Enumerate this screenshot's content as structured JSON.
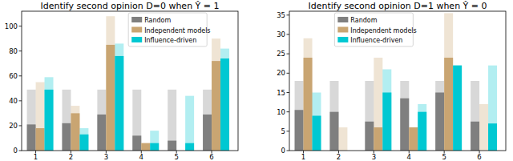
{
  "chart_data": [
    {
      "type": "bar",
      "title": "Identify second opinion D=0 when Ŷ = 1",
      "categories": [
        "1",
        "2",
        "3",
        "4",
        "5",
        "6"
      ],
      "series": [
        {
          "name": "Random",
          "color": "#7f7f7f",
          "values": [
            21,
            22,
            29,
            12,
            8,
            29
          ],
          "totals": [
            49,
            49,
            49,
            49,
            49,
            49
          ]
        },
        {
          "name": "Independent models",
          "color": "#c9a572",
          "values": [
            18,
            30,
            85,
            6,
            0,
            72
          ],
          "totals": [
            55,
            36,
            108,
            6,
            0,
            90
          ]
        },
        {
          "name": "Influence-driven",
          "color": "#00c8d2",
          "values": [
            49,
            13,
            76,
            6,
            6,
            74
          ],
          "totals": [
            59,
            18,
            86,
            16,
            44,
            82
          ]
        }
      ],
      "ylim": [
        0,
        112
      ],
      "yticks": [
        0,
        20,
        40,
        60,
        80,
        100
      ],
      "legend": "upper center"
    },
    {
      "type": "bar",
      "title": "Identify second opinion D=1 when Ŷ = 0",
      "categories": [
        "1",
        "2",
        "3",
        "4",
        "5",
        "6"
      ],
      "series": [
        {
          "name": "Random",
          "color": "#7f7f7f",
          "values": [
            10.5,
            10,
            7.5,
            13.5,
            15,
            7.5
          ],
          "totals": [
            18,
            18,
            18,
            18,
            18,
            18
          ]
        },
        {
          "name": "Independent models",
          "color": "#c9a572",
          "values": [
            24,
            0,
            6,
            6,
            24,
            0
          ],
          "totals": [
            29,
            6,
            24,
            6,
            35.5,
            12
          ]
        },
        {
          "name": "Influence-driven",
          "color": "#00c8d2",
          "values": [
            9,
            0,
            15,
            10,
            22,
            7
          ],
          "totals": [
            15,
            0,
            21,
            12,
            22,
            22
          ]
        }
      ],
      "ylim": [
        0,
        36
      ],
      "yticks": [
        0,
        5,
        10,
        15,
        20,
        25,
        30,
        35
      ],
      "legend": "upper center"
    }
  ]
}
